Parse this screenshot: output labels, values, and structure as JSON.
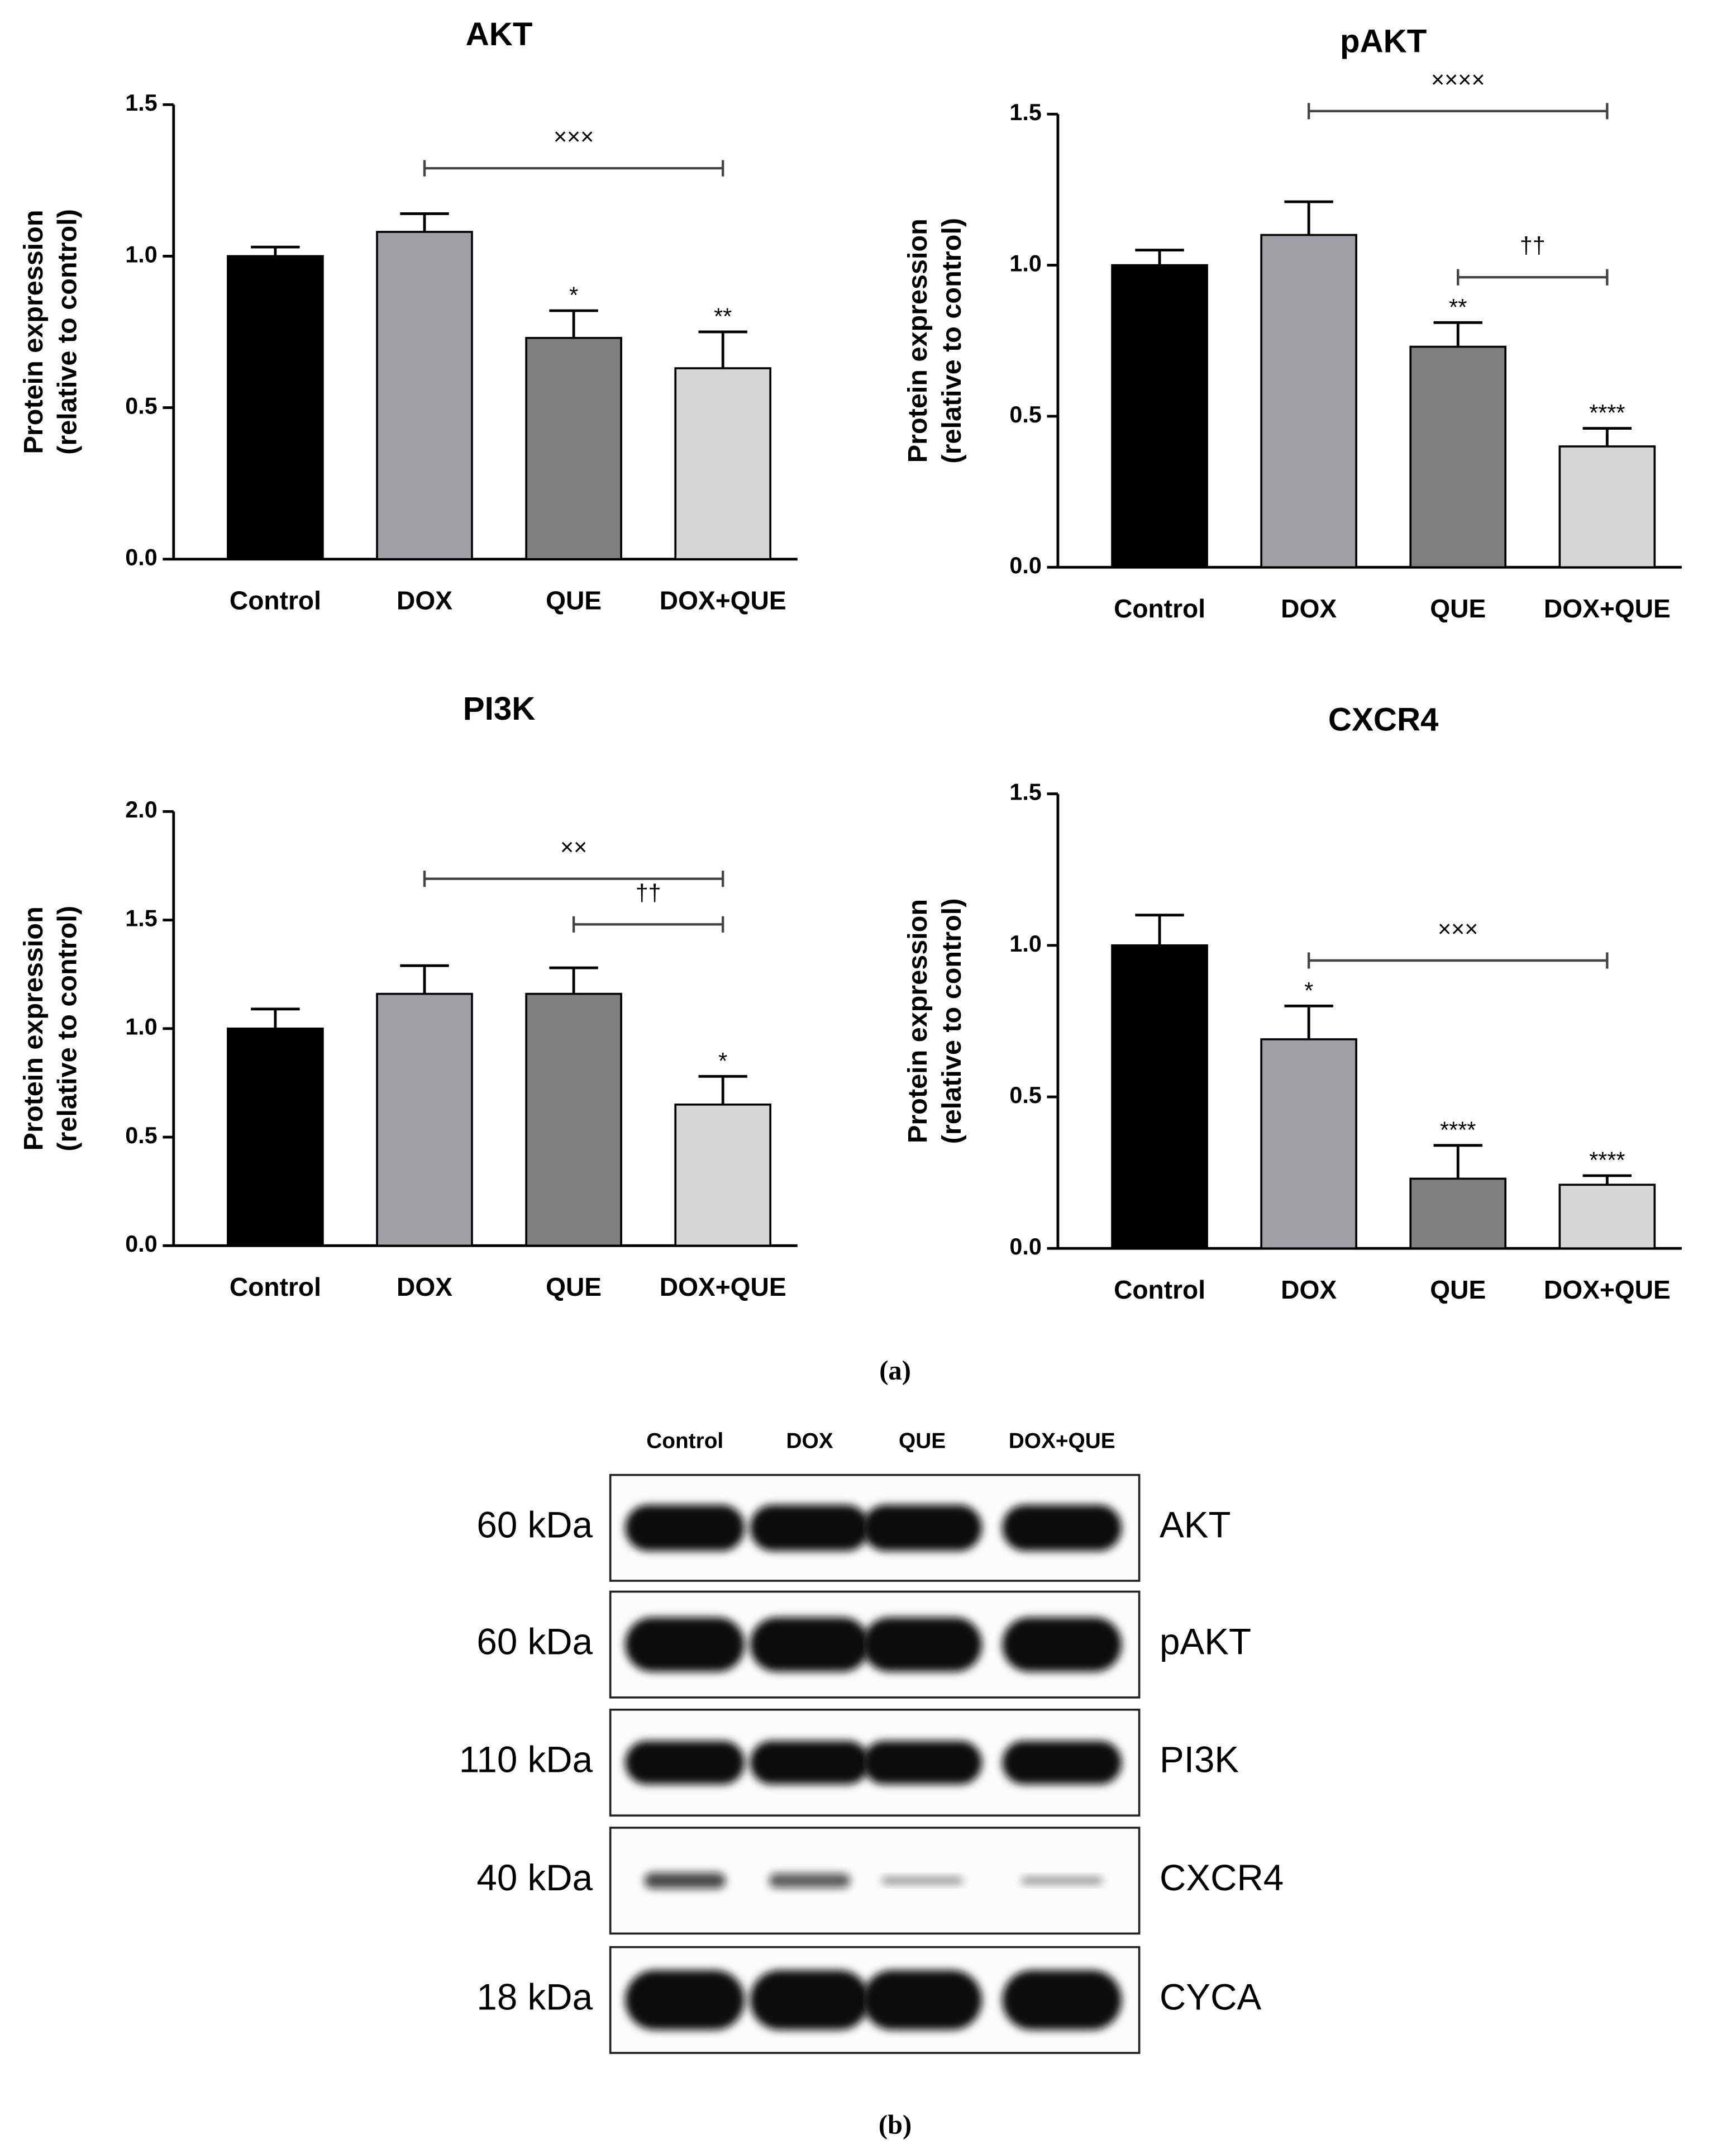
{
  "chart_data": [
    {
      "type": "bar",
      "title": "AKT",
      "ylabel": [
        "Protein expression",
        "(relative to control)"
      ],
      "categories": [
        "Control",
        "DOX",
        "QUE",
        "DOX+QUE"
      ],
      "values": [
        1.0,
        1.08,
        0.73,
        0.63
      ],
      "errors": [
        0.03,
        0.06,
        0.09,
        0.12
      ],
      "colors": [
        "#000000",
        "#a0a0a6",
        "#7f7f7f",
        "#d6d6d6"
      ],
      "annotations": [
        null,
        null,
        "*",
        "**"
      ],
      "brackets": [
        {
          "start": "DOX",
          "end": "DOX+QUE",
          "label": "×××"
        }
      ],
      "ylim": [
        0,
        1.5
      ],
      "yticks": [
        {
          "value": 0,
          "label": "0.0"
        },
        {
          "value": 0.5,
          "label": "0.5"
        },
        {
          "value": 1,
          "label": "1.0"
        },
        {
          "value": 1.5,
          "label": "1.5"
        }
      ]
    },
    {
      "type": "bar",
      "title": "pAKT",
      "ylabel": [
        "Protein expression",
        "(relative to control)"
      ],
      "categories": [
        "Control",
        "DOX",
        "QUE",
        "DOX+QUE"
      ],
      "values": [
        1.0,
        1.1,
        0.73,
        0.4
      ],
      "errors": [
        0.05,
        0.11,
        0.08,
        0.06
      ],
      "colors": [
        "#000000",
        "#a0a0a6",
        "#7f7f7f",
        "#d6d6d6"
      ],
      "annotations": [
        null,
        null,
        "**",
        "****"
      ],
      "brackets": [
        {
          "start": "DOX",
          "end": "DOX+QUE",
          "label": "××××"
        },
        {
          "start": "QUE",
          "end": "DOX+QUE",
          "label": "††"
        }
      ],
      "ylim": [
        0,
        1.5
      ],
      "yticks": [
        {
          "value": 0,
          "label": "0.0"
        },
        {
          "value": 0.5,
          "label": "0.5"
        },
        {
          "value": 1,
          "label": "1.0"
        },
        {
          "value": 1.5,
          "label": "1.5"
        }
      ]
    },
    {
      "type": "bar",
      "title": "PI3K",
      "ylabel": [
        "Protein expression",
        "(relative to control)"
      ],
      "categories": [
        "Control",
        "DOX",
        "QUE",
        "DOX+QUE"
      ],
      "values": [
        1.0,
        1.16,
        1.16,
        0.65
      ],
      "errors": [
        0.09,
        0.13,
        0.12,
        0.13
      ],
      "colors": [
        "#000000",
        "#a0a0a6",
        "#7f7f7f",
        "#d6d6d6"
      ],
      "annotations": [
        null,
        null,
        null,
        "*"
      ],
      "brackets": [
        {
          "start": "DOX",
          "end": "DOX+QUE",
          "label": "××"
        },
        {
          "start": "QUE",
          "end": "DOX+QUE",
          "label": "††"
        }
      ],
      "ylim": [
        0,
        2
      ],
      "yticks": [
        {
          "value": 0,
          "label": "0.0"
        },
        {
          "value": 0.5,
          "label": "0.5"
        },
        {
          "value": 1,
          "label": "1.0"
        },
        {
          "value": 1.5,
          "label": "1.5"
        },
        {
          "value": 2,
          "label": "2.0"
        }
      ]
    },
    {
      "type": "bar",
      "title": "CXCR4",
      "ylabel": [
        "Protein expression",
        "(relative to control)"
      ],
      "categories": [
        "Control",
        "DOX",
        "QUE",
        "DOX+QUE"
      ],
      "values": [
        1.0,
        0.69,
        0.23,
        0.21
      ],
      "errors": [
        0.1,
        0.11,
        0.11,
        0.03
      ],
      "colors": [
        "#000000",
        "#a0a0a6",
        "#7f7f7f",
        "#d6d6d6"
      ],
      "annotations": [
        null,
        "*",
        "****",
        "****"
      ],
      "brackets": [
        {
          "start": "DOX",
          "end": "DOX+QUE",
          "label": "×××"
        }
      ],
      "ylim": [
        0,
        1.5
      ],
      "yticks": [
        {
          "value": 0,
          "label": "0.0"
        },
        {
          "value": 0.5,
          "label": "0.5"
        },
        {
          "value": 1,
          "label": "1.0"
        },
        {
          "value": 1.5,
          "label": "1.5"
        }
      ]
    }
  ],
  "captions": [
    "(a)",
    "(b)"
  ],
  "blot": {
    "lanes": [
      "Control",
      "DOX",
      "QUE",
      "DOX+QUE"
    ],
    "rows": [
      {
        "size": "60 kDa",
        "protein": "AKT"
      },
      {
        "size": "60 kDa",
        "protein": "pAKT"
      },
      {
        "size": "110 kDa",
        "protein": "PI3K"
      },
      {
        "size": "40 kDa",
        "protein": "CXCR4"
      },
      {
        "size": "18 kDa",
        "protein": "CYCA"
      }
    ]
  }
}
